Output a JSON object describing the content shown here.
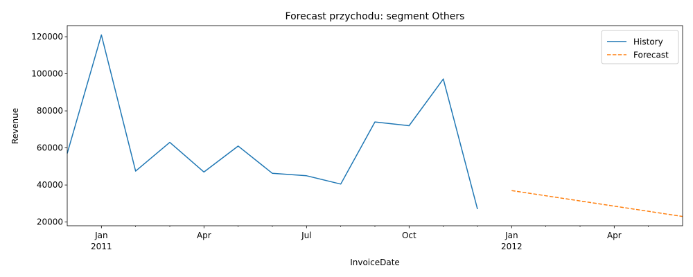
{
  "chart_data": {
    "type": "line",
    "title": "Forecast przychodu: segment Others",
    "xlabel": "InvoiceDate",
    "ylabel": "Revenue",
    "x_range": [
      "2010-12",
      "2012-06"
    ],
    "ylim": [
      18000,
      126000
    ],
    "yticks": [
      20000,
      40000,
      60000,
      80000,
      100000,
      120000
    ],
    "xticks": [
      {
        "date": "2011-01",
        "label": "Jan",
        "sublabel": "2011"
      },
      {
        "date": "2011-04",
        "label": "Apr",
        "sublabel": ""
      },
      {
        "date": "2011-07",
        "label": "Jul",
        "sublabel": ""
      },
      {
        "date": "2011-10",
        "label": "Oct",
        "sublabel": ""
      },
      {
        "date": "2012-01",
        "label": "Jan",
        "sublabel": "2012"
      },
      {
        "date": "2012-04",
        "label": "Apr",
        "sublabel": ""
      }
    ],
    "minor_ticks": [
      "2011-02",
      "2011-03",
      "2011-05",
      "2011-06",
      "2011-08",
      "2011-09",
      "2011-11",
      "2011-12",
      "2012-02",
      "2012-03",
      "2012-05"
    ],
    "grid": false,
    "legend_position": "top-right",
    "series": [
      {
        "name": "History",
        "style": "solid",
        "color": "#1f77b4",
        "x": [
          "2010-12",
          "2011-01",
          "2011-02",
          "2011-03",
          "2011-04",
          "2011-05",
          "2011-06",
          "2011-07",
          "2011-08",
          "2011-09",
          "2011-10",
          "2011-11",
          "2011-12"
        ],
        "values": [
          57000,
          121000,
          47500,
          63000,
          47000,
          61000,
          46300,
          45000,
          40500,
          74000,
          72000,
          97200,
          27000
        ]
      },
      {
        "name": "Forecast",
        "style": "dashed",
        "color": "#ff7f0e",
        "x": [
          "2012-01",
          "2012-06"
        ],
        "values": [
          37000,
          23000
        ]
      }
    ]
  }
}
